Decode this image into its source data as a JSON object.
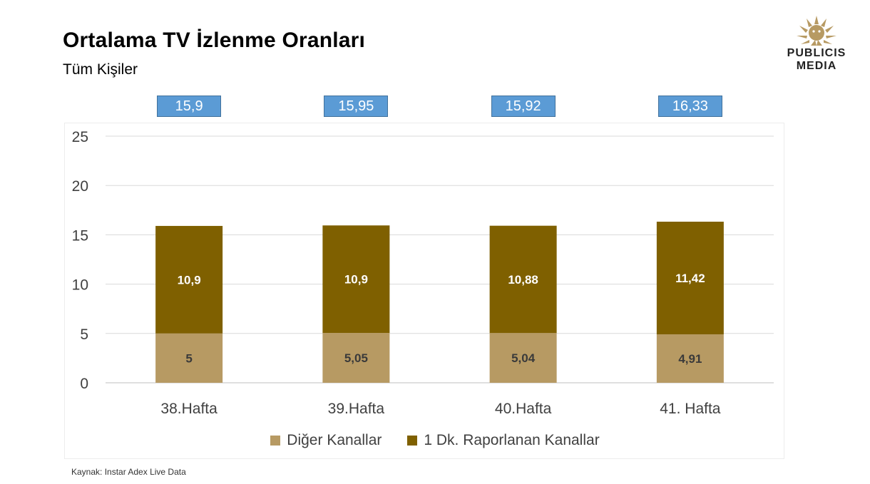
{
  "header": {
    "title": "Ortalama TV İzlenme Oranları",
    "subtitle": "Tüm Kişiler"
  },
  "logo": {
    "line1": "PUBLICIS",
    "line2": "MEDIA"
  },
  "source": "Kaynak: Instar  Adex Live Data",
  "colors": {
    "other": "#b79a63",
    "reported": "#7f6000",
    "total_box": "#5b9bd5"
  },
  "chart_data": {
    "type": "bar",
    "stacked": true,
    "title": "Ortalama TV İzlenme Oranları",
    "subtitle": "Tüm Kişiler",
    "categories": [
      "38.Hafta",
      "39.Hafta",
      "40.Hafta",
      "41. Hafta"
    ],
    "series": [
      {
        "name": "Diğer Kanallar",
        "values": [
          5,
          5.05,
          5.04,
          4.91
        ],
        "labels": [
          "5",
          "5,05",
          "5,04",
          "4,91"
        ],
        "color": "#b79a63"
      },
      {
        "name": "1 Dk. Raporlanan Kanallar",
        "values": [
          10.9,
          10.9,
          10.88,
          11.42
        ],
        "labels": [
          "10,9",
          "10,9",
          "10,88",
          "11,42"
        ],
        "color": "#7f6000"
      }
    ],
    "totals": [
      "15,9",
      "15,95",
      "15,92",
      "16,33"
    ],
    "ylim": [
      0,
      25
    ],
    "yticks": [
      0,
      5,
      10,
      15,
      20,
      25
    ],
    "grid": true,
    "legend": "bottom"
  }
}
